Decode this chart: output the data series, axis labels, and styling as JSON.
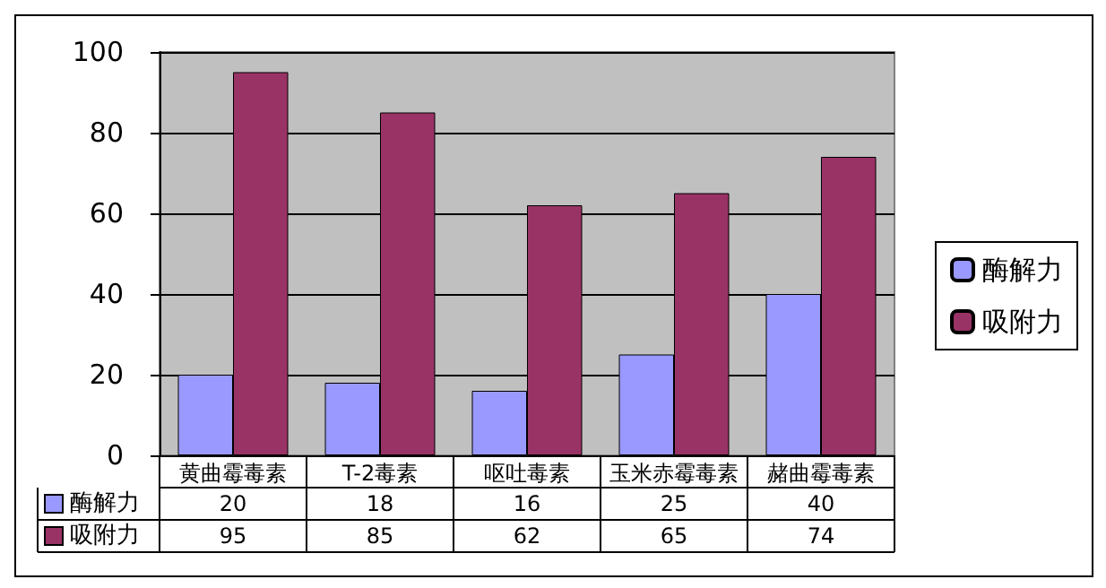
{
  "chart_data": {
    "type": "bar",
    "categories": [
      "黄曲霉毒素",
      "T-2毒素",
      "呕吐毒素",
      "玉米赤霉毒素",
      "赭曲霉毒素"
    ],
    "series": [
      {
        "name": "酶解力",
        "color": "#9999ff",
        "values": [
          20,
          18,
          16,
          25,
          40
        ]
      },
      {
        "name": "吸附力",
        "color": "#993366",
        "values": [
          95,
          85,
          62,
          65,
          74
        ]
      }
    ],
    "ylim": [
      0,
      100
    ],
    "yticks": [
      0,
      20,
      40,
      60,
      80,
      100
    ],
    "grid": "y",
    "legend": "right",
    "data_labels": true
  }
}
